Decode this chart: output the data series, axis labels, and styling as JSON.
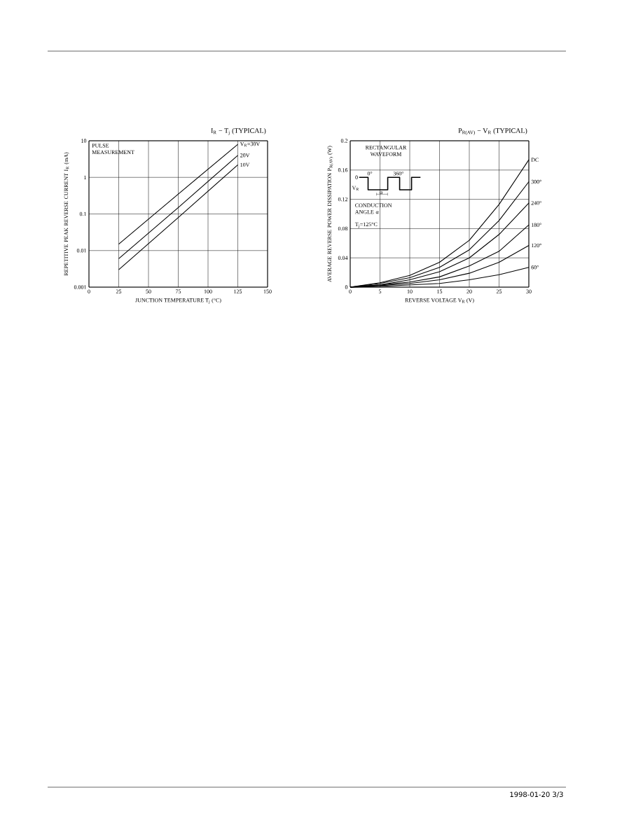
{
  "chart_data": [
    {
      "type": "line",
      "title": "I$_{R}$ − T$_{j}$    (TYPICAL)",
      "xlabel": "JUNCTION TEMPERATURE  T$_{j}$  (°C)",
      "ylabel": "REPETITIVE PEAK REVERSE CURRENT I$_{R}$  (mA)",
      "log": "y",
      "grid": true,
      "xlim": [
        0,
        150
      ],
      "xticks": [
        0,
        25,
        50,
        75,
        100,
        125,
        150
      ],
      "ylim": [
        0.001,
        10
      ],
      "yticks": [
        0.001,
        0.01,
        0.1,
        1,
        10
      ],
      "x": [
        25,
        75,
        125
      ],
      "series": [
        {
          "name": "V$_{R}$=30V",
          "color": "#000000",
          "values": [
            0.015,
            0.35,
            8
          ]
        },
        {
          "name": "20V",
          "color": "#000000",
          "values": [
            0.006,
            0.15,
            4
          ]
        },
        {
          "name": "10V",
          "color": "#000000",
          "values": [
            0.003,
            0.08,
            2.2
          ]
        }
      ],
      "annotations": [
        "PULSE MEASUREMENT"
      ]
    },
    {
      "type": "line",
      "title": "P$_{R(AV)}$ − V$_{R}$   (TYPICAL)",
      "xlabel": "REVERSE VOLTAGE  V$_{R}$  (V)",
      "ylabel": "AVERAGE REVERSE POWER DISSIPATION P$_{R(AV)}$  (W)",
      "grid": true,
      "xlim": [
        0,
        30
      ],
      "xticks": [
        0,
        5,
        10,
        15,
        20,
        25,
        30
      ],
      "ylim": [
        0,
        0.2
      ],
      "yticks": [
        0,
        0.04,
        0.08,
        0.12,
        0.16,
        0.2
      ],
      "x": [
        0,
        5,
        10,
        15,
        20,
        25,
        30
      ],
      "series": [
        {
          "name": "DC",
          "color": "#000000",
          "values": [
            0,
            0.006,
            0.016,
            0.034,
            0.064,
            0.113,
            0.174
          ]
        },
        {
          "name": "300°",
          "color": "#000000",
          "values": [
            0,
            0.005,
            0.013,
            0.027,
            0.051,
            0.091,
            0.144
          ]
        },
        {
          "name": "240°",
          "color": "#000000",
          "values": [
            0,
            0.003,
            0.01,
            0.021,
            0.04,
            0.072,
            0.115
          ]
        },
        {
          "name": "180°",
          "color": "#000000",
          "values": [
            0,
            0.003,
            0.007,
            0.014,
            0.029,
            0.049,
            0.085
          ]
        },
        {
          "name": "120°",
          "color": "#000000",
          "values": [
            0,
            0.002,
            0.005,
            0.01,
            0.019,
            0.034,
            0.057
          ]
        },
        {
          "name": "60°",
          "color": "#000000",
          "values": [
            0,
            0.001,
            0.003,
            0.005,
            0.01,
            0.017,
            0.027
          ]
        }
      ],
      "annotations": [
        "RECTANGULAR WAVEFORM",
        "0",
        "0°",
        "360°",
        "V$_{R}$",
        "α",
        "CONDUCTION ANGLE α",
        "T$_{j}$=125°C",
        "1998-01-20   3/3"
      ]
    }
  ]
}
